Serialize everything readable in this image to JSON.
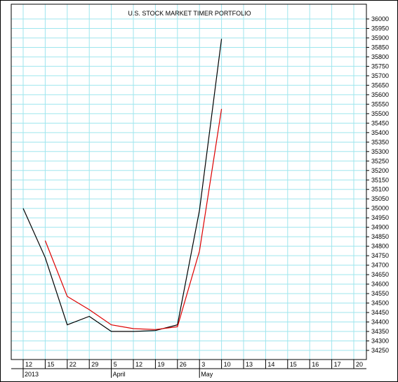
{
  "chart_data": {
    "type": "line",
    "title": "U.S. STOCK MARKET TIMER PORTFOLIO",
    "xlabel": "",
    "ylabel": "",
    "x_ticks": [
      "12",
      "15",
      "22",
      "29",
      "5",
      "12",
      "19",
      "26",
      "3",
      "10",
      "13",
      "14",
      "15",
      "16",
      "17",
      "20"
    ],
    "x_secondary_labels": [
      {
        "text": "2013",
        "tick": 0
      },
      {
        "text": "April",
        "tick": 4
      },
      {
        "text": "May",
        "tick": 8
      }
    ],
    "ylim": [
      34200,
      36050
    ],
    "y_ticks": [
      34250,
      34300,
      34350,
      34400,
      34450,
      34500,
      34550,
      34600,
      34650,
      34700,
      34750,
      34800,
      34850,
      34900,
      34950,
      35000,
      35050,
      35100,
      35150,
      35200,
      35250,
      35300,
      35350,
      35400,
      35450,
      35500,
      35550,
      35600,
      35650,
      35700,
      35750,
      35800,
      35850,
      35900,
      35950,
      36000
    ],
    "grid": true,
    "series": [
      {
        "color": "#000000",
        "points": [
          [
            0,
            35000
          ],
          [
            1,
            34740
          ],
          [
            2,
            34385
          ],
          [
            3,
            34430
          ],
          [
            4,
            34350
          ],
          [
            5,
            34350
          ],
          [
            6,
            34355
          ],
          [
            7,
            34385
          ],
          [
            8,
            34990
          ],
          [
            9,
            35895
          ]
        ]
      },
      {
        "color": "#dd0000",
        "points": [
          [
            1,
            34830
          ],
          [
            2,
            34535
          ],
          [
            3,
            34465
          ],
          [
            4,
            34385
          ],
          [
            5,
            34365
          ],
          [
            6,
            34360
          ],
          [
            7,
            34375
          ],
          [
            8,
            34775
          ],
          [
            9,
            35525
          ]
        ]
      }
    ]
  }
}
